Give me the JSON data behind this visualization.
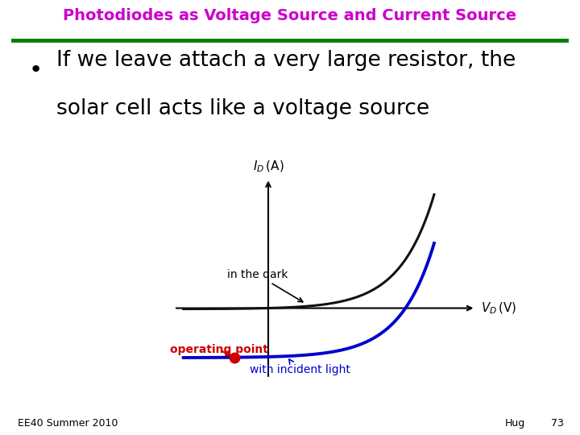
{
  "title": "Photodiodes as Voltage Source and Current Source",
  "title_color": "#CC00CC",
  "title_fontsize": 14,
  "bullet_text_line1": "If we leave attach a very large resistor, the",
  "bullet_text_line2": "solar cell acts like a voltage source",
  "bullet_fontsize": 19,
  "green_line_color": "#008000",
  "dark_curve_color": "#111111",
  "light_curve_color": "#0000CC",
  "operating_point_color": "#CC0000",
  "operating_point_label": "operating point",
  "in_dark_label": "in the dark",
  "with_light_label": "with incident light",
  "footer_left": "EE40 Summer 2010",
  "footer_right_name": "Hug",
  "footer_right_num": "73",
  "footer_fontsize": 9,
  "graph_xlim": [
    -0.5,
    1.1
  ],
  "graph_ylim": [
    -0.65,
    1.2
  ]
}
